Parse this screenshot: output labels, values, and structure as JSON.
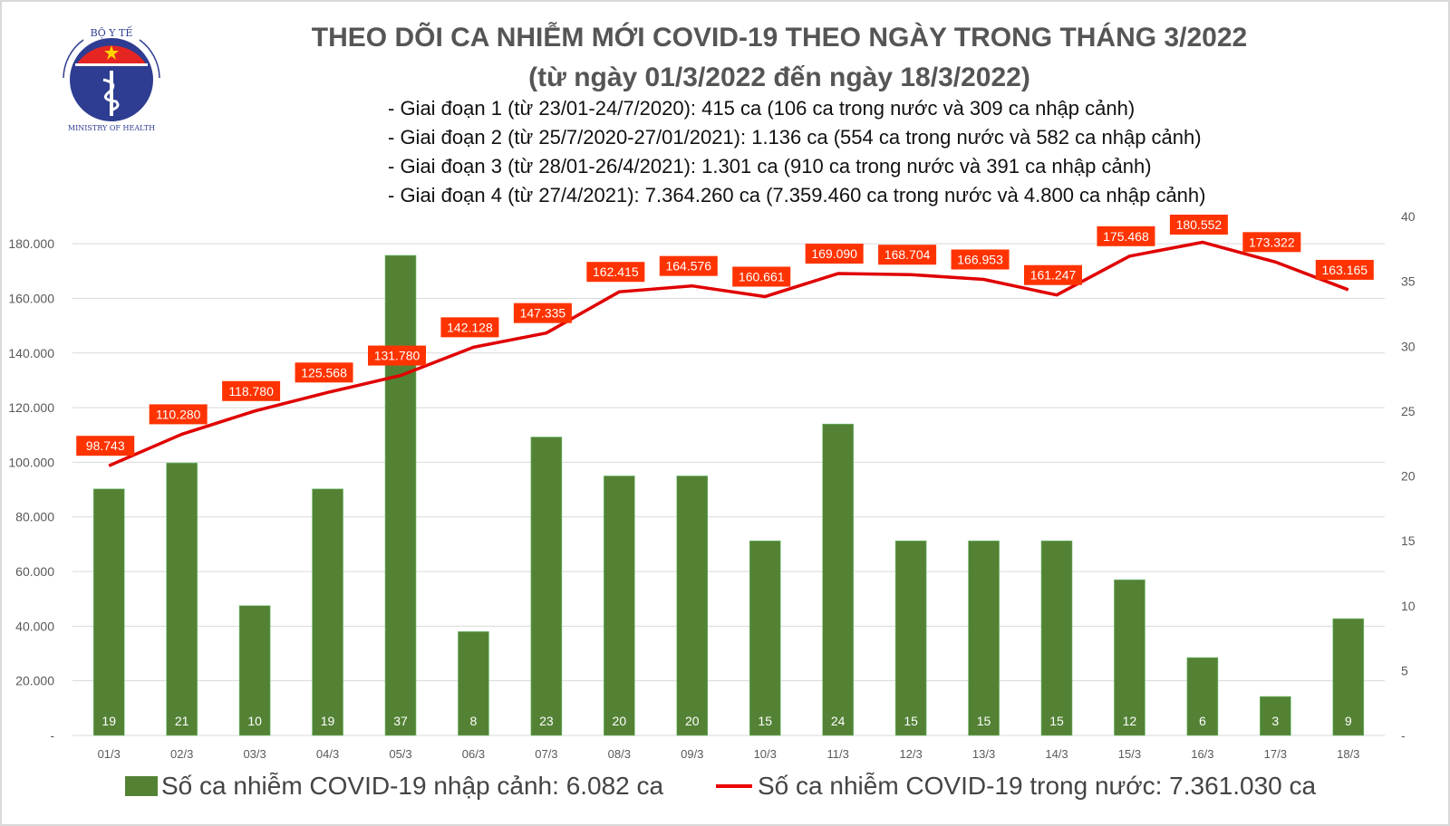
{
  "logo": {
    "text_top": "BỘ Y TẾ",
    "text_bottom": "MINISTRY OF HEALTH"
  },
  "title": [
    "THEO DÕI CA NHIỄM MỚI COVID-19 THEO NGÀY TRONG THÁNG 3/2022",
    "(từ ngày 01/3/2022 đến ngày 18/3/2022)"
  ],
  "stages": [
    "- Giai đoạn 1 (từ 23/01-24/7/2020): 415 ca (106 ca trong nước và 309 ca nhập cảnh)",
    "- Giai đoạn 2 (từ 25/7/2020-27/01/2021): 1.136 ca (554 ca trong nước và 582 ca nhập cảnh)",
    "- Giai đoạn 3 (từ 28/01-26/4/2021): 1.301 ca (910 ca trong nước và 391 ca nhập cảnh)",
    "- Giai đoạn 4 (từ 27/4/2021): 7.364.260 ca (7.359.460 ca trong nước và 4.800 ca nhập cảnh)"
  ],
  "chart_data": {
    "type": "bar+line",
    "categories": [
      "01/3",
      "02/3",
      "03/3",
      "04/3",
      "05/3",
      "06/3",
      "07/3",
      "08/3",
      "09/3",
      "10/3",
      "11/3",
      "12/3",
      "13/3",
      "14/3",
      "15/3",
      "16/3",
      "17/3",
      "18/3"
    ],
    "series": [
      {
        "name": "Số ca nhiễm COVID-19 nhập cảnh: 6.082 ca",
        "type": "bar",
        "axis": "right",
        "color": "#548235",
        "values": [
          19,
          21,
          10,
          19,
          37,
          8,
          23,
          20,
          20,
          15,
          24,
          15,
          15,
          15,
          12,
          6,
          3,
          9
        ]
      },
      {
        "name": "Số ca nhiễm COVID-19 trong nước: 7.361.030 ca",
        "type": "line",
        "axis": "left",
        "color": "#e00000",
        "values": [
          98743,
          110280,
          118780,
          125568,
          131780,
          142128,
          147335,
          162415,
          164576,
          160661,
          169090,
          168704,
          166953,
          161247,
          175468,
          180552,
          173322,
          163165
        ],
        "labels": [
          "98.743",
          "110.280",
          "118.780",
          "125.568",
          "131.780",
          "142.128",
          "147.335",
          "162.415",
          "164.576",
          "160.661",
          "169.090",
          "168.704",
          "166.953",
          "161.247",
          "175.468",
          "180.552",
          "173.322",
          "163.165"
        ]
      }
    ],
    "left_axis": {
      "range": [
        0,
        190000
      ],
      "ticks": [
        "-",
        "20.000",
        "40.000",
        "60.000",
        "80.000",
        "100.000",
        "120.000",
        "140.000",
        "160.000",
        "180.000"
      ]
    },
    "right_axis": {
      "range": [
        0,
        40
      ],
      "ticks": [
        "-",
        "5",
        "10",
        "15",
        "20",
        "25",
        "30",
        "35",
        "40"
      ]
    },
    "grid": true,
    "legend_position": "bottom",
    "label_color": "#ff3300"
  }
}
